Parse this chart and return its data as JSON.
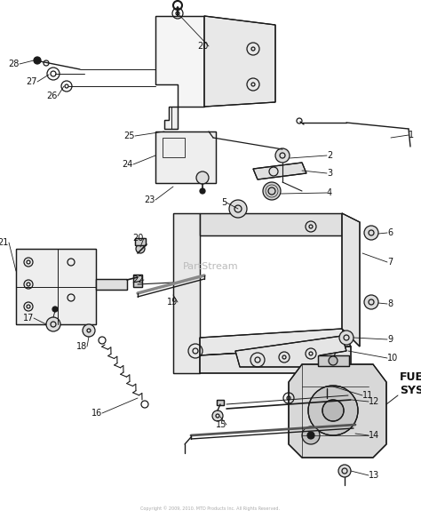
{
  "bg_color": "#ffffff",
  "fig_width": 4.74,
  "fig_height": 5.83,
  "dpi": 100,
  "line_color": "#1a1a1a",
  "label_color": "#111111",
  "fuel_label": "FUEL\nSYSTEM",
  "watermark": "PartStream",
  "copyright": "Copyright © 2009, 2010. MTD Products Inc. All Rights Reserved."
}
